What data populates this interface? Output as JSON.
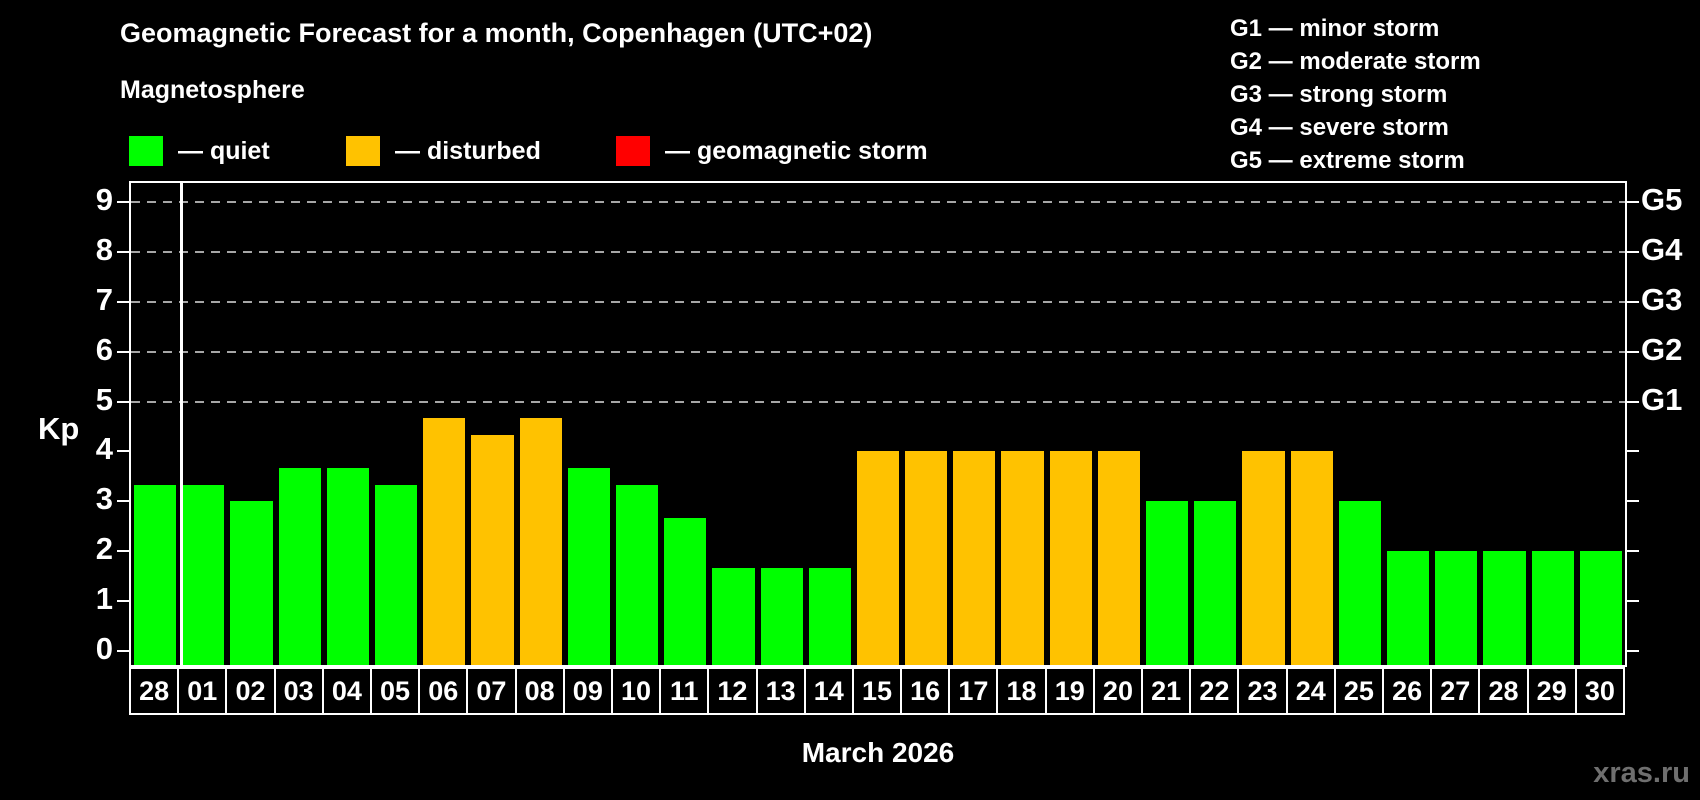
{
  "header": {
    "title": "Geomagnetic Forecast for a month, Copenhagen (UTC+02)"
  },
  "magnetosphere_legend": {
    "title": "Magnetosphere",
    "items": [
      {
        "name": "quiet",
        "label": "— quiet",
        "color": "#00ff00"
      },
      {
        "name": "disturbed",
        "label": "— disturbed",
        "color": "#ffc200"
      },
      {
        "name": "storm",
        "label": "— geomagnetic storm",
        "color": "#ff0000"
      }
    ]
  },
  "g_scale_legend": {
    "lines": [
      "G1 — minor storm",
      "G2 — moderate storm",
      "G3 — strong storm",
      "G4 — severe storm",
      "G5 — extreme storm"
    ]
  },
  "axis": {
    "kp_label": "Kp",
    "yticks": [
      0,
      1,
      2,
      3,
      4,
      5,
      6,
      7,
      8,
      9
    ],
    "g_levels": [
      {
        "label": "G1",
        "value": 5
      },
      {
        "label": "G2",
        "value": 6
      },
      {
        "label": "G3",
        "value": 7
      },
      {
        "label": "G4",
        "value": 8
      },
      {
        "label": "G5",
        "value": 9
      }
    ]
  },
  "chart_data": {
    "type": "bar",
    "title": "Geomagnetic Forecast for a month, Copenhagen (UTC+02)",
    "xlabel": "March 2026",
    "ylabel": "Kp",
    "ylim": [
      0,
      9
    ],
    "grid": "horizontal dashed lines at Kp 5-9 (G1-G5 levels) only",
    "legend_position": "top",
    "categories": [
      "28",
      "01",
      "02",
      "03",
      "04",
      "05",
      "06",
      "07",
      "08",
      "09",
      "10",
      "11",
      "12",
      "13",
      "14",
      "15",
      "16",
      "17",
      "18",
      "19",
      "20",
      "21",
      "22",
      "23",
      "24",
      "25",
      "26",
      "27",
      "28",
      "29",
      "30"
    ],
    "values": [
      3.33,
      3.33,
      3.0,
      3.67,
      3.67,
      3.33,
      4.67,
      4.33,
      4.67,
      3.67,
      3.33,
      2.67,
      1.67,
      1.67,
      1.67,
      4.0,
      4.0,
      4.0,
      4.0,
      4.0,
      4.0,
      3.0,
      3.0,
      4.0,
      4.0,
      3.0,
      2.0,
      2.0,
      2.0,
      2.0,
      2.0
    ],
    "thresholds": {
      "disturbed_min": 4,
      "storm_min": 5
    },
    "month_separator_after_index": 0
  },
  "colors": {
    "background": "#000000",
    "quiet": "#00ff00",
    "disturbed": "#ffc200",
    "storm": "#ff0000",
    "grid": "#a6a6a6",
    "frame": "#ffffff",
    "text": "#ffffff",
    "watermark": "#6f6f6f"
  },
  "footer": {
    "month_caption": "March 2026",
    "watermark": "xras.ru"
  }
}
